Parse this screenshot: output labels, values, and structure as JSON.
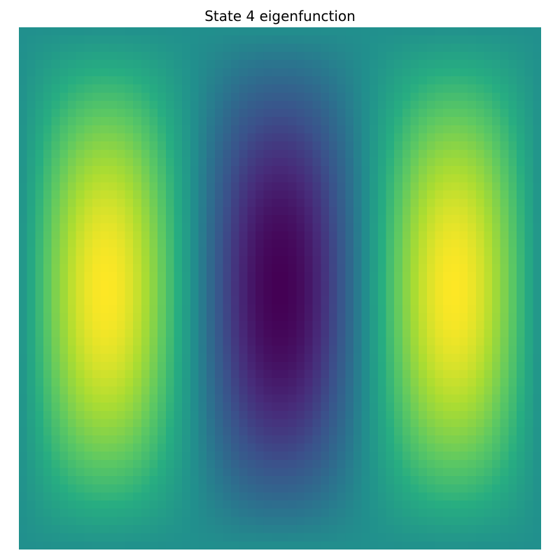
{
  "chart_data": {
    "type": "heatmap",
    "title": "State 4 eigenfunction",
    "colormap": "viridis",
    "axes_visible": false,
    "grid": false,
    "legend": "none",
    "field": "psi(x, y) = sin(3*pi*x) * sin(pi*y)",
    "x_mode": 3,
    "y_mode": 1,
    "resolution": 64
  }
}
